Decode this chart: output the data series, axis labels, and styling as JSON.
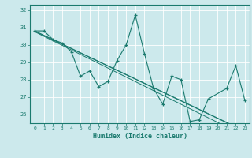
{
  "title": "",
  "xlabel": "Humidex (Indice chaleur)",
  "ylabel": "",
  "background_color": "#cce9ec",
  "grid_color": "#ffffff",
  "line_color": "#1a7a6e",
  "x_values": [
    0,
    1,
    2,
    3,
    4,
    5,
    6,
    7,
    8,
    9,
    10,
    11,
    12,
    13,
    14,
    15,
    16,
    17,
    18,
    19,
    20,
    21,
    22,
    23
  ],
  "series1": [
    30.8,
    30.8,
    30.3,
    30.1,
    29.6,
    28.2,
    28.5,
    27.6,
    27.9,
    29.1,
    30.0,
    31.7,
    29.5,
    27.5,
    26.6,
    28.2,
    28.0,
    25.6,
    25.7,
    26.9,
    null,
    27.5,
    28.8,
    26.8
  ],
  "regression1": [
    30.8,
    30.55,
    30.3,
    30.05,
    29.8,
    29.55,
    29.3,
    29.05,
    28.8,
    28.55,
    28.3,
    28.05,
    27.8,
    27.55,
    27.3,
    27.05,
    26.8,
    26.55,
    26.3,
    26.05,
    25.8,
    25.55,
    25.3,
    25.05
  ],
  "regression2": [
    30.75,
    30.49,
    30.23,
    29.97,
    29.71,
    29.45,
    29.19,
    28.93,
    28.67,
    28.41,
    28.15,
    27.89,
    27.63,
    27.37,
    27.11,
    26.85,
    26.59,
    26.33,
    26.07,
    25.81,
    25.55,
    25.29,
    25.03,
    24.77
  ],
  "regression3": [
    30.78,
    30.53,
    30.28,
    30.03,
    29.78,
    29.53,
    29.28,
    29.03,
    28.78,
    28.53,
    28.28,
    28.03,
    27.78,
    27.53,
    27.28,
    27.03,
    26.78,
    26.53,
    26.28,
    26.03,
    25.78,
    25.53,
    25.28,
    25.03
  ],
  "ylim": [
    25.5,
    32.3
  ],
  "yticks": [
    26,
    27,
    28,
    29,
    30,
    31,
    32
  ],
  "xlim": [
    -0.5,
    23.5
  ],
  "figsize": [
    3.2,
    2.0
  ],
  "dpi": 100
}
